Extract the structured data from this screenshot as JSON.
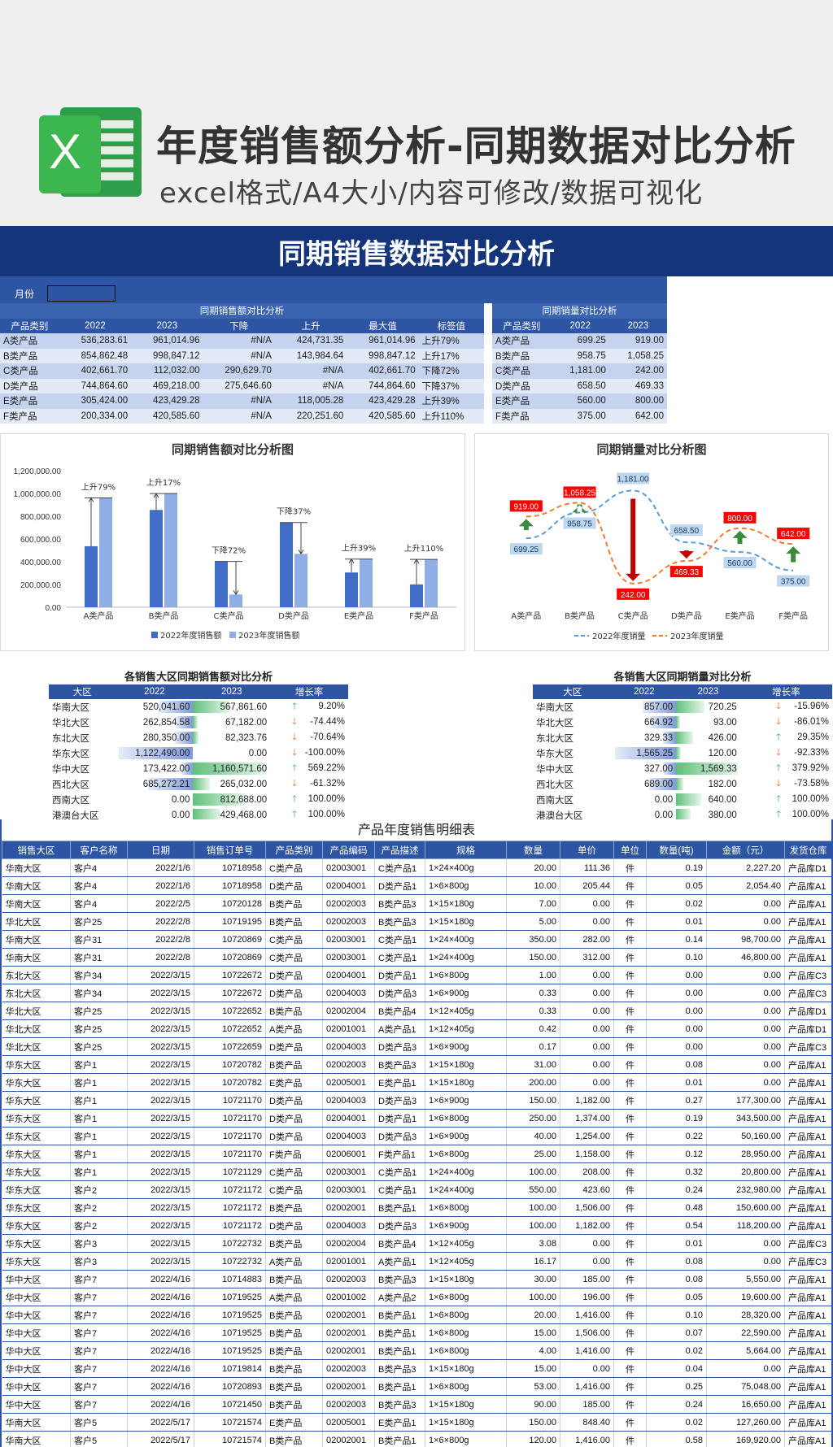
{
  "header": {
    "logo_letter": "X",
    "title": "年度销售额分析-同期数据对比分析",
    "subtitle": "excel格式/A4大小/内容可修改/数据可视化"
  },
  "banner": {
    "title": "同期销售数据对比分析"
  },
  "month": {
    "label": "月份",
    "value": ""
  },
  "sales_table": {
    "group_title": "同期销售额对比分析",
    "headers": [
      "产品类别",
      "2022",
      "2023",
      "下降",
      "上升",
      "最大值",
      "标签值"
    ],
    "rows": [
      [
        "A类产品",
        "536,283.61",
        "961,014.96",
        "#N/A",
        "424,731.35",
        "961,014.96",
        "上升79%"
      ],
      [
        "B类产品",
        "854,862.48",
        "998,847.12",
        "#N/A",
        "143,984.64",
        "998,847.12",
        "上升17%"
      ],
      [
        "C类产品",
        "402,661.70",
        "112,032.00",
        "290,629.70",
        "#N/A",
        "402,661.70",
        "下降72%"
      ],
      [
        "D类产品",
        "744,864.60",
        "469,218.00",
        "275,646.60",
        "#N/A",
        "744,864.60",
        "下降37%"
      ],
      [
        "E类产品",
        "305,424.00",
        "423,429.28",
        "#N/A",
        "118,005.28",
        "423,429.28",
        "上升39%"
      ],
      [
        "F类产品",
        "200,334.00",
        "420,585.60",
        "#N/A",
        "220,251.60",
        "420,585.60",
        "上升110%"
      ]
    ]
  },
  "qty_table": {
    "group_title": "同期销量对比分析",
    "headers": [
      "产品类别",
      "2022",
      "2023"
    ],
    "rows": [
      [
        "A类产品",
        "699.25",
        "919.00"
      ],
      [
        "B类产品",
        "958.75",
        "1,058.25"
      ],
      [
        "C类产品",
        "1,181.00",
        "242.00"
      ],
      [
        "D类产品",
        "658.50",
        "469.33"
      ],
      [
        "E类产品",
        "560.00",
        "800.00"
      ],
      [
        "F类产品",
        "375.00",
        "642.00"
      ]
    ]
  },
  "chart_data": [
    {
      "type": "bar",
      "title": "同期销售额对比分析图",
      "categories": [
        "A类产品",
        "B类产品",
        "C类产品",
        "D类产品",
        "E类产品",
        "F类产品"
      ],
      "series": [
        {
          "name": "2022年度销售额",
          "values": [
            536283.61,
            854862.48,
            402661.7,
            744864.6,
            305424,
            200334
          ],
          "color": "#3f6cc4"
        },
        {
          "name": "2023年度销售额",
          "values": [
            961014.96,
            998847.12,
            112032,
            469218,
            423429.28,
            420585.6
          ],
          "color": "#90aee6"
        }
      ],
      "annotations": [
        "上升79%",
        "上升17%",
        "下降72%",
        "下降37%",
        "上升39%",
        "上升110%"
      ],
      "yticks": [
        "0.00",
        "200,000.00",
        "400,000.00",
        "600,000.00",
        "800,000.00",
        "1,000,000.00",
        "1,200,000.00"
      ],
      "ylim": [
        0,
        1200000
      ],
      "legend": "bottom"
    },
    {
      "type": "line",
      "title": "同期销量对比分析图",
      "categories": [
        "A类产品",
        "B类产品",
        "C类产品",
        "D类产品",
        "E类产品",
        "F类产品"
      ],
      "series": [
        {
          "name": "2022年度销量",
          "values": [
            699.25,
            958.75,
            1181,
            658.5,
            560,
            375
          ],
          "color": "#5b9bd5",
          "labels": [
            "699.25",
            "958.75",
            "1,181.00",
            "658.50",
            "560.00",
            "375.00"
          ]
        },
        {
          "name": "2023年度销量",
          "values": [
            919,
            1058.25,
            242,
            469.33,
            800,
            642
          ],
          "color": "#ed7d31",
          "labels": [
            "919.00",
            "1,058.25",
            "242.00",
            "469.33",
            "800.00",
            "642.00"
          ]
        }
      ],
      "ylim": [
        150,
        1300
      ],
      "legend": "bottom"
    }
  ],
  "region_sales": {
    "title": "各销售大区同期销售额对比分析",
    "headers": [
      "大区",
      "2022",
      "2023",
      "增长率"
    ],
    "rows": [
      {
        "region": "华南大区",
        "v22": "520,041.60",
        "n22": 520041.6,
        "v23": "567,861.60",
        "n23": 567861.6,
        "rate": "9.20%",
        "up": true
      },
      {
        "region": "华北大区",
        "v22": "262,854.58",
        "n22": 262854.58,
        "v23": "67,182.00",
        "n23": 67182,
        "rate": "-74.44%",
        "up": false
      },
      {
        "region": "东北大区",
        "v22": "280,350.00",
        "n22": 280350,
        "v23": "82,323.76",
        "n23": 82323.76,
        "rate": "-70.64%",
        "up": false
      },
      {
        "region": "华东大区",
        "v22": "1,122,490.00",
        "n22": 1122490,
        "v23": "0.00",
        "n23": 0,
        "rate": "-100.00%",
        "up": false
      },
      {
        "region": "华中大区",
        "v22": "173,422.00",
        "n22": 173422,
        "v23": "1,160,571.60",
        "n23": 1160571.6,
        "rate": "569.22%",
        "up": true
      },
      {
        "region": "西北大区",
        "v22": "685,272.21",
        "n22": 685272.21,
        "v23": "265,032.00",
        "n23": 265032,
        "rate": "-61.32%",
        "up": false
      },
      {
        "region": "西南大区",
        "v22": "0.00",
        "n22": 0,
        "v23": "812,688.00",
        "n23": 812688,
        "rate": "100.00%",
        "up": true
      },
      {
        "region": "港澳台大区",
        "v22": "0.00",
        "n22": 0,
        "v23": "429,468.00",
        "n23": 429468,
        "rate": "100.00%",
        "up": true
      }
    ]
  },
  "region_qty": {
    "title": "各销售大区同期销量对比分析",
    "headers": [
      "大区",
      "2022",
      "2023",
      "增长率"
    ],
    "rows": [
      {
        "region": "华南大区",
        "v22": "857.00",
        "n22": 857,
        "v23": "720.25",
        "n23": 720.25,
        "rate": "-15.96%",
        "up": false
      },
      {
        "region": "华北大区",
        "v22": "664.92",
        "n22": 664.92,
        "v23": "93.00",
        "n23": 93,
        "rate": "-86.01%",
        "up": false
      },
      {
        "region": "东北大区",
        "v22": "329.33",
        "n22": 329.33,
        "v23": "426.00",
        "n23": 426,
        "rate": "29.35%",
        "up": true
      },
      {
        "region": "华东大区",
        "v22": "1,565.25",
        "n22": 1565.25,
        "v23": "120.00",
        "n23": 120,
        "rate": "-92.33%",
        "up": false
      },
      {
        "region": "华中大区",
        "v22": "327.00",
        "n22": 327,
        "v23": "1,569.33",
        "n23": 1569.33,
        "rate": "379.92%",
        "up": true
      },
      {
        "region": "西北大区",
        "v22": "689.00",
        "n22": 689,
        "v23": "182.00",
        "n23": 182,
        "rate": "-73.58%",
        "up": false
      },
      {
        "region": "西南大区",
        "v22": "0.00",
        "n22": 0,
        "v23": "640.00",
        "n23": 640,
        "rate": "100.00%",
        "up": true
      },
      {
        "region": "港澳台大区",
        "v22": "0.00",
        "n22": 0,
        "v23": "380.00",
        "n23": 380,
        "rate": "100.00%",
        "up": true
      }
    ]
  },
  "detail": {
    "title": "产品年度销售明细表",
    "headers": [
      "销售大区",
      "客户名称",
      "日期",
      "销售订单号",
      "产品类别",
      "产品编码",
      "产品描述",
      "规格",
      "数量",
      "单价",
      "单位",
      "数量(吨)",
      "金额（元）",
      "发货仓库"
    ],
    "rows": [
      [
        "华南大区",
        "客户4",
        "2022/1/6",
        "10718958",
        "C类产品",
        "02003001",
        "C类产品1",
        "1×24×400g",
        "20.00",
        "111.36",
        "件",
        "0.19",
        "2,227.20",
        "产品库D1"
      ],
      [
        "华南大区",
        "客户4",
        "2022/1/6",
        "10718958",
        "D类产品",
        "02004001",
        "D类产品1",
        "1×6×800g",
        "10.00",
        "205.44",
        "件",
        "0.05",
        "2,054.40",
        "产品库A1"
      ],
      [
        "华南大区",
        "客户4",
        "2022/2/5",
        "10720128",
        "B类产品",
        "02002003",
        "B类产品3",
        "1×15×180g",
        "7.00",
        "0.00",
        "件",
        "0.02",
        "0.00",
        "产品库A1"
      ],
      [
        "华北大区",
        "客户25",
        "2022/2/8",
        "10719195",
        "B类产品",
        "02002003",
        "B类产品3",
        "1×15×180g",
        "5.00",
        "0.00",
        "件",
        "0.01",
        "0.00",
        "产品库A1"
      ],
      [
        "华南大区",
        "客户31",
        "2022/2/8",
        "10720869",
        "C类产品",
        "02003001",
        "C类产品1",
        "1×24×400g",
        "350.00",
        "282.00",
        "件",
        "0.14",
        "98,700.00",
        "产品库A1"
      ],
      [
        "华南大区",
        "客户31",
        "2022/2/8",
        "10720869",
        "C类产品",
        "02003001",
        "C类产品1",
        "1×24×400g",
        "150.00",
        "312.00",
        "件",
        "0.10",
        "46,800.00",
        "产品库A1"
      ],
      [
        "东北大区",
        "客户34",
        "2022/3/15",
        "10722672",
        "D类产品",
        "02004001",
        "D类产品1",
        "1×6×800g",
        "1.00",
        "0.00",
        "件",
        "0.00",
        "0.00",
        "产品库C3"
      ],
      [
        "东北大区",
        "客户34",
        "2022/3/15",
        "10722672",
        "D类产品",
        "02004003",
        "D类产品3",
        "1×6×900g",
        "0.33",
        "0.00",
        "件",
        "0.00",
        "0.00",
        "产品库C3"
      ],
      [
        "华北大区",
        "客户25",
        "2022/3/15",
        "10722652",
        "B类产品",
        "02002004",
        "B类产品4",
        "1×12×405g",
        "0.33",
        "0.00",
        "件",
        "0.00",
        "0.00",
        "产品库D1"
      ],
      [
        "华北大区",
        "客户25",
        "2022/3/15",
        "10722652",
        "A类产品",
        "02001001",
        "A类产品1",
        "1×12×405g",
        "0.42",
        "0.00",
        "件",
        "0.00",
        "0.00",
        "产品库D1"
      ],
      [
        "华北大区",
        "客户25",
        "2022/3/15",
        "10722659",
        "D类产品",
        "02004003",
        "D类产品3",
        "1×6×900g",
        "0.17",
        "0.00",
        "件",
        "0.00",
        "0.00",
        "产品库C3"
      ],
      [
        "华东大区",
        "客户1",
        "2022/3/15",
        "10720782",
        "B类产品",
        "02002003",
        "B类产品3",
        "1×15×180g",
        "31.00",
        "0.00",
        "件",
        "0.08",
        "0.00",
        "产品库A1"
      ],
      [
        "华东大区",
        "客户1",
        "2022/3/15",
        "10720782",
        "E类产品",
        "02005001",
        "E类产品1",
        "1×15×180g",
        "200.00",
        "0.00",
        "件",
        "0.01",
        "0.00",
        "产品库A1"
      ],
      [
        "华东大区",
        "客户1",
        "2022/3/15",
        "10721170",
        "D类产品",
        "02004003",
        "D类产品3",
        "1×6×900g",
        "150.00",
        "1,182.00",
        "件",
        "0.27",
        "177,300.00",
        "产品库A1"
      ],
      [
        "华东大区",
        "客户1",
        "2022/3/15",
        "10721170",
        "D类产品",
        "02004001",
        "D类产品1",
        "1×6×800g",
        "250.00",
        "1,374.00",
        "件",
        "0.19",
        "343,500.00",
        "产品库A1"
      ],
      [
        "华东大区",
        "客户1",
        "2022/3/15",
        "10721170",
        "D类产品",
        "02004003",
        "D类产品3",
        "1×6×900g",
        "40.00",
        "1,254.00",
        "件",
        "0.22",
        "50,160.00",
        "产品库A1"
      ],
      [
        "华东大区",
        "客户1",
        "2022/3/15",
        "10721170",
        "F类产品",
        "02006001",
        "F类产品1",
        "1×6×800g",
        "25.00",
        "1,158.00",
        "件",
        "0.12",
        "28,950.00",
        "产品库A1"
      ],
      [
        "华东大区",
        "客户1",
        "2022/3/15",
        "10721129",
        "C类产品",
        "02003001",
        "C类产品1",
        "1×24×400g",
        "100.00",
        "208.00",
        "件",
        "0.32",
        "20,800.00",
        "产品库A1"
      ],
      [
        "华东大区",
        "客户2",
        "2022/3/15",
        "10721172",
        "C类产品",
        "02003001",
        "C类产品1",
        "1×24×400g",
        "550.00",
        "423.60",
        "件",
        "0.24",
        "232,980.00",
        "产品库A1"
      ],
      [
        "华东大区",
        "客户2",
        "2022/3/15",
        "10721172",
        "B类产品",
        "02002001",
        "B类产品1",
        "1×6×800g",
        "100.00",
        "1,506.00",
        "件",
        "0.48",
        "150,600.00",
        "产品库A1"
      ],
      [
        "华东大区",
        "客户2",
        "2022/3/15",
        "10721172",
        "D类产品",
        "02004003",
        "D类产品3",
        "1×6×900g",
        "100.00",
        "1,182.00",
        "件",
        "0.54",
        "118,200.00",
        "产品库A1"
      ],
      [
        "华东大区",
        "客户3",
        "2022/3/15",
        "10722732",
        "B类产品",
        "02002004",
        "B类产品4",
        "1×12×405g",
        "3.08",
        "0.00",
        "件",
        "0.01",
        "0.00",
        "产品库C3"
      ],
      [
        "华东大区",
        "客户3",
        "2022/3/15",
        "10722732",
        "A类产品",
        "02001001",
        "A类产品1",
        "1×12×405g",
        "16.17",
        "0.00",
        "件",
        "0.08",
        "0.00",
        "产品库C3"
      ],
      [
        "华中大区",
        "客户7",
        "2022/4/16",
        "10714883",
        "B类产品",
        "02002003",
        "B类产品3",
        "1×15×180g",
        "30.00",
        "185.00",
        "件",
        "0.08",
        "5,550.00",
        "产品库A1"
      ],
      [
        "华中大区",
        "客户7",
        "2022/4/16",
        "10719525",
        "A类产品",
        "02001002",
        "A类产品2",
        "1×6×800g",
        "100.00",
        "196.00",
        "件",
        "0.05",
        "19,600.00",
        "产品库A1"
      ],
      [
        "华中大区",
        "客户7",
        "2022/4/16",
        "10719525",
        "B类产品",
        "02002001",
        "B类产品1",
        "1×6×800g",
        "20.00",
        "1,416.00",
        "件",
        "0.10",
        "28,320.00",
        "产品库A1"
      ],
      [
        "华中大区",
        "客户7",
        "2022/4/16",
        "10719525",
        "B类产品",
        "02002001",
        "B类产品1",
        "1×6×800g",
        "15.00",
        "1,506.00",
        "件",
        "0.07",
        "22,590.00",
        "产品库A1"
      ],
      [
        "华中大区",
        "客户7",
        "2022/4/16",
        "10719525",
        "B类产品",
        "02002001",
        "B类产品1",
        "1×6×800g",
        "4.00",
        "1,416.00",
        "件",
        "0.02",
        "5,664.00",
        "产品库A1"
      ],
      [
        "华中大区",
        "客户7",
        "2022/4/16",
        "10719814",
        "B类产品",
        "02002003",
        "B类产品3",
        "1×15×180g",
        "15.00",
        "0.00",
        "件",
        "0.04",
        "0.00",
        "产品库A1"
      ],
      [
        "华中大区",
        "客户7",
        "2022/4/16",
        "10720893",
        "B类产品",
        "02002001",
        "B类产品1",
        "1×6×800g",
        "53.00",
        "1,416.00",
        "件",
        "0.25",
        "75,048.00",
        "产品库A1"
      ],
      [
        "华中大区",
        "客户7",
        "2022/4/16",
        "10721450",
        "B类产品",
        "02002003",
        "B类产品3",
        "1×15×180g",
        "90.00",
        "185.00",
        "件",
        "0.24",
        "16,650.00",
        "产品库A1"
      ],
      [
        "华南大区",
        "客户5",
        "2022/5/17",
        "10721574",
        "E类产品",
        "02005001",
        "E类产品1",
        "1×15×180g",
        "150.00",
        "848.40",
        "件",
        "0.02",
        "127,260.00",
        "产品库A1"
      ],
      [
        "华南大区",
        "客户5",
        "2022/5/17",
        "10721574",
        "B类产品",
        "02002001",
        "B类产品1",
        "1×6×800g",
        "120.00",
        "1,416.00",
        "件",
        "0.58",
        "169,920.00",
        "产品库A1"
      ]
    ]
  }
}
